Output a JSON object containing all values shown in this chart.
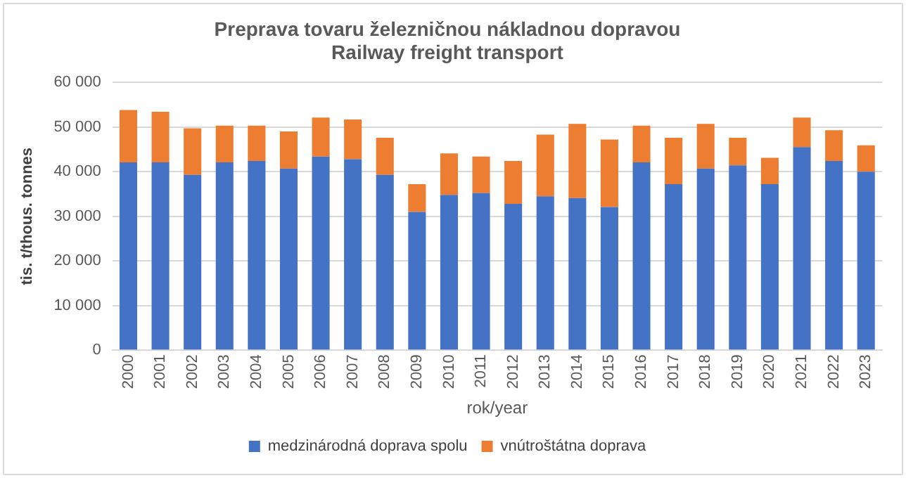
{
  "chart_data": {
    "type": "bar",
    "stacked": true,
    "title": [
      "Preprava tovaru železničnou nákladnou dopravou",
      "Railway freight transport"
    ],
    "xlabel": "rok/year",
    "ylabel": "tis. t/thous. tonnes",
    "categories": [
      "2000",
      "2001",
      "2002",
      "2003",
      "2004",
      "2005",
      "2006",
      "2007",
      "2008",
      "2009",
      "2010",
      "2011",
      "2012",
      "2013",
      "2014",
      "2015",
      "2016",
      "2017",
      "2018",
      "2019",
      "2020",
      "2021",
      "2022",
      "2023"
    ],
    "series": [
      {
        "name": "medzinárodná doprava spolu",
        "color": "#4472c4",
        "values": [
          42100,
          42100,
          39300,
          42100,
          42400,
          40700,
          43400,
          42800,
          39300,
          31000,
          34800,
          35200,
          32800,
          34500,
          34100,
          32100,
          42100,
          37200,
          40700,
          41400,
          37200,
          45500,
          42400,
          40000
        ]
      },
      {
        "name": "vnútroštátna doprava",
        "color": "#ed7d31",
        "values": [
          11700,
          11300,
          10400,
          8200,
          7900,
          8300,
          8700,
          8900,
          8300,
          6200,
          9300,
          8200,
          9600,
          13800,
          16600,
          15100,
          8200,
          10400,
          10000,
          6200,
          5900,
          6600,
          6900,
          5900
        ]
      }
    ],
    "ylim": [
      0,
      60000
    ],
    "yticks": [
      {
        "value": 0,
        "label": "0"
      },
      {
        "value": 10000,
        "label": "10 000"
      },
      {
        "value": 20000,
        "label": "20 000"
      },
      {
        "value": 30000,
        "label": "30 000"
      },
      {
        "value": 40000,
        "label": "40 000"
      },
      {
        "value": 50000,
        "label": "50 000"
      },
      {
        "value": 60000,
        "label": "60 000"
      }
    ],
    "grid": "y",
    "legend": "bottom"
  }
}
